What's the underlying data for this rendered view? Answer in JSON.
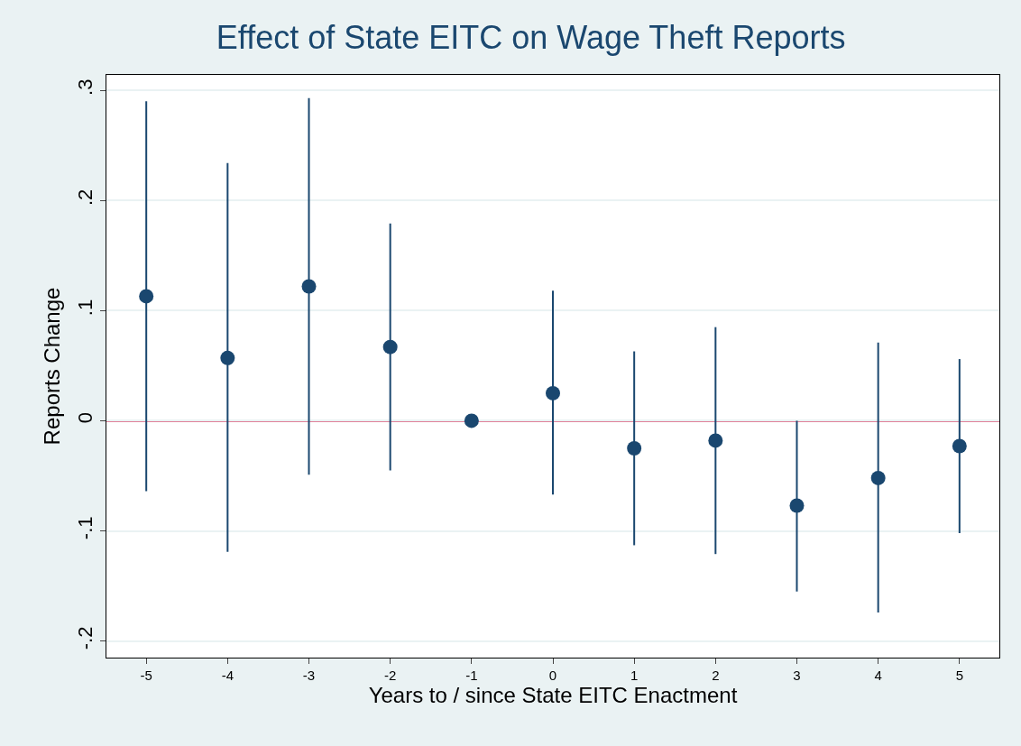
{
  "chart_data": {
    "type": "scatter",
    "title": "Effect of State EITC on Wage Theft Reports",
    "xlabel": "Years to / since State EITC Enactment",
    "ylabel": "Reports Change",
    "x": [
      -5,
      -4,
      -3,
      -2,
      -1,
      0,
      1,
      2,
      3,
      4,
      5
    ],
    "values": [
      0.113,
      0.057,
      0.122,
      0.067,
      0,
      0.025,
      -0.025,
      -0.018,
      -0.077,
      -0.052,
      -0.023
    ],
    "errors": [
      [
        -0.064,
        0.29
      ],
      [
        -0.119,
        0.234
      ],
      [
        -0.049,
        0.293
      ],
      [
        -0.045,
        0.179
      ],
      null,
      [
        -0.067,
        0.118
      ],
      [
        -0.113,
        0.063
      ],
      [
        -0.121,
        0.085
      ],
      [
        -0.155,
        0.0
      ],
      [
        -0.174,
        0.071
      ],
      [
        -0.102,
        0.056
      ]
    ],
    "color": "#1a476f",
    "marker": "circle",
    "xlim": [
      -5.49,
      5.49
    ],
    "xticks": [
      -5,
      -4,
      -3,
      -2,
      -1,
      0,
      1,
      2,
      3,
      4,
      5
    ],
    "ylim": [
      -0.215,
      0.314
    ],
    "yticks": [
      {
        "value": -0.2,
        "label": "-.2"
      },
      {
        "value": -0.1,
        "label": "-.1"
      },
      0,
      {
        "value": 0.1,
        "label": ".1"
      },
      {
        "value": 0.2,
        "label": ".2"
      },
      {
        "value": 0.3,
        "label": ".3"
      }
    ],
    "ref_lines": [
      {
        "axis": "y",
        "value": 0,
        "label": null,
        "color": "#c10534"
      }
    ],
    "grid": "y"
  }
}
